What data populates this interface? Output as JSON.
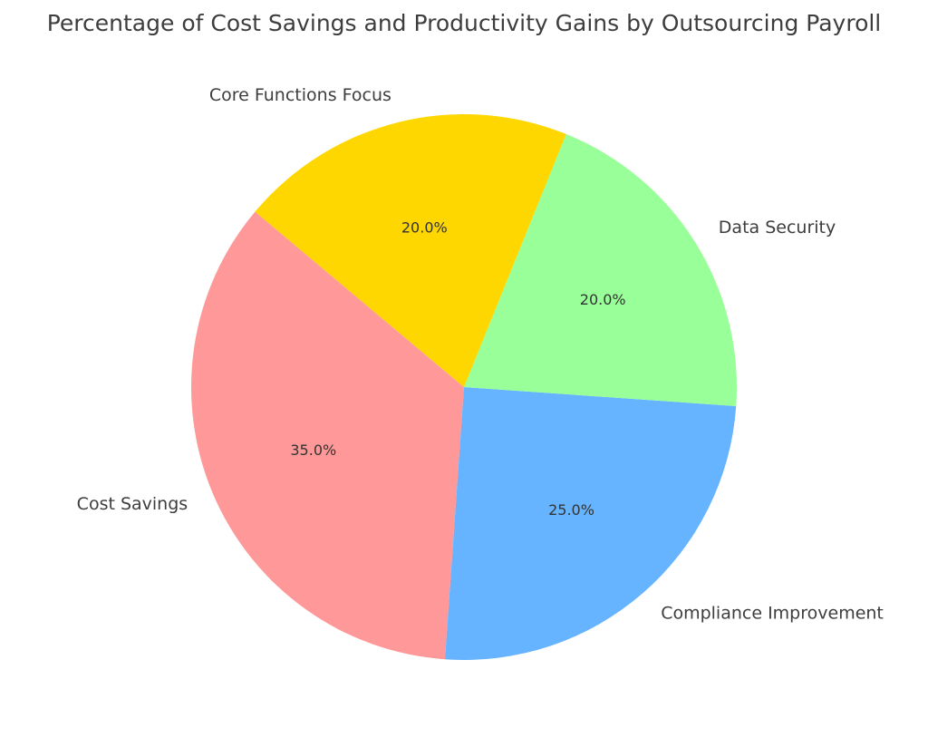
{
  "chart_data": {
    "type": "pie",
    "title": "Percentage of Cost Savings and Productivity Gains by Outsourcing Payroll",
    "categories": [
      "Cost Savings",
      "Compliance Improvement",
      "Data Security",
      "Core Functions Focus"
    ],
    "values": [
      35.0,
      25.0,
      20.0,
      20.0
    ],
    "value_labels": [
      "35.0%",
      "25.0%",
      "20.0%",
      "20.0%"
    ],
    "colors": [
      "#ff9999",
      "#66b3ff",
      "#99ff99",
      "#ffd700"
    ],
    "start_angle": 140,
    "direction": "counterclockwise",
    "legend": "none"
  }
}
